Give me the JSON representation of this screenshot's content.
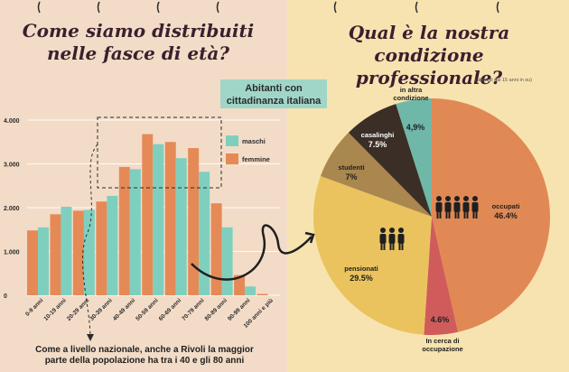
{
  "left": {
    "title_line1": "Come siamo distribuiti",
    "title_line2": "nelle fasce di età?",
    "badge_line1": "Abitanti con",
    "badge_line2": "cittadinanza italiana",
    "footnote_line1": "Come a livello nazionale, anche a Rivoli la maggior",
    "footnote_line2": "parte della popolazione ha tra i 40 e gli 80 anni"
  },
  "right": {
    "title_line1": "Qual è la nostra condizione",
    "title_line2": "professionale?",
    "subnote": "(abitanti dai 15 anni in su)"
  },
  "chart_data": [
    {
      "type": "bar",
      "categories": [
        "0-9 anni",
        "10-19 anni",
        "20-29 anni",
        "30-39 anni",
        "40-49 anni",
        "50-59 anni",
        "60-69 anni",
        "70-79 anni",
        "80-89 anni",
        "90-99 anni",
        "100 anni e più"
      ],
      "series": [
        {
          "name": "maschi",
          "color": "#7fcfbf",
          "values": [
            1550,
            2020,
            1950,
            2270,
            2880,
            3450,
            3130,
            2820,
            1550,
            200,
            0
          ]
        },
        {
          "name": "femmine",
          "color": "#e58a57",
          "values": [
            1480,
            1850,
            1930,
            2140,
            2930,
            3680,
            3500,
            3360,
            2100,
            460,
            30
          ]
        }
      ],
      "yticks": [
        "0",
        "1.000",
        "2.000",
        "3.000",
        "4.000"
      ],
      "ylim": [
        0,
        4000
      ],
      "legend": "top-right"
    },
    {
      "type": "pie",
      "slices": [
        {
          "label": "occupati",
          "value_label": "46.4%",
          "value": 46.4,
          "color": "#e08955"
        },
        {
          "label": "In cerca di occupazione",
          "value_label": "4.6%",
          "value": 4.6,
          "color": "#d05b5b"
        },
        {
          "label": "pensionati",
          "value_label": "29.5%",
          "value": 29.5,
          "color": "#eac35f"
        },
        {
          "label": "studenti",
          "value_label": "7%",
          "value": 7,
          "color": "#a9874f"
        },
        {
          "label": "casalinghi",
          "value_label": "7.5%",
          "value": 7.5,
          "color": "#3a2e27"
        },
        {
          "label": "in altra condizione",
          "value_label": "4,9%",
          "value": 4.9,
          "color": "#6fb8a8"
        }
      ]
    }
  ]
}
